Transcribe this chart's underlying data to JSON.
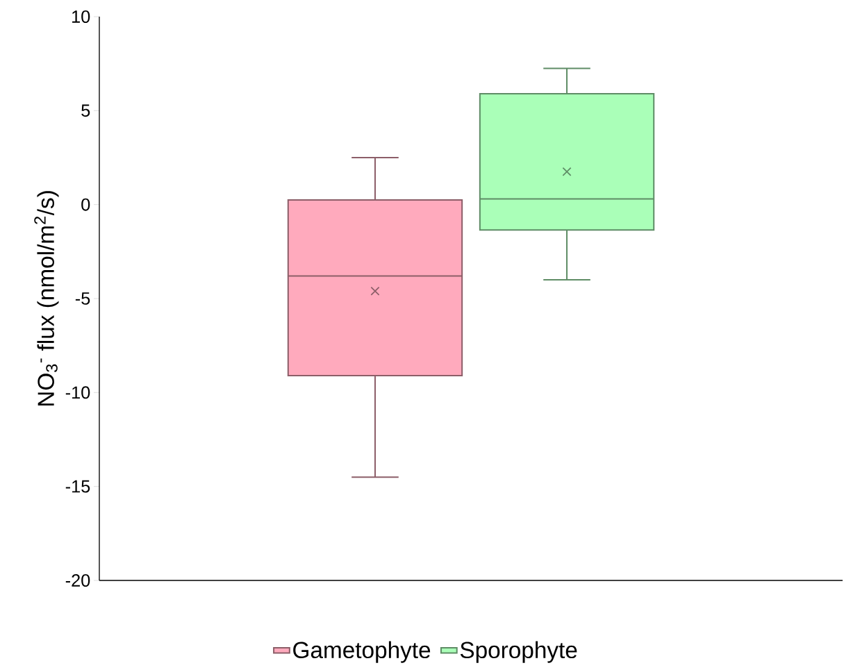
{
  "chart_data": {
    "type": "box",
    "ylabel": "NO$_{3}$$^{-}$ flux (nmol/m$^{2}$/s)",
    "categories": [
      null
    ],
    "ylim": [
      -20,
      10
    ],
    "yticks": [
      -20,
      -15,
      -10,
      -5,
      0,
      5,
      10
    ],
    "legend": "bottom",
    "series": [
      {
        "name": "Gametophyte",
        "color": "#ffaabd",
        "boxes": [
          {
            "low": -14.5,
            "q1": -9.1,
            "median": -3.8,
            "q3": 0.25,
            "high": 2.5,
            "mean": -4.6
          }
        ]
      },
      {
        "name": "Sporophyte",
        "color": "#aaffb8",
        "boxes": [
          {
            "low": -4.0,
            "q1": -1.35,
            "median": 0.3,
            "q3": 5.9,
            "high": 7.25,
            "mean": 1.75
          }
        ]
      }
    ]
  }
}
